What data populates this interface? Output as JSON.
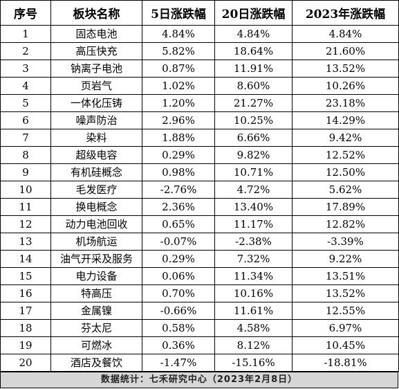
{
  "table": {
    "headers": [
      "序号",
      "板块名称",
      "5日涨跌幅",
      "20日涨跌幅",
      "2023年涨跌幅"
    ],
    "rows": [
      [
        "1",
        "固态电池",
        "4.84%",
        "4.84%",
        "4.84%"
      ],
      [
        "2",
        "高压快充",
        "5.82%",
        "18.64%",
        "21.60%"
      ],
      [
        "3",
        "钠离子电池",
        "0.87%",
        "11.91%",
        "13.52%"
      ],
      [
        "4",
        "页岩气",
        "1.02%",
        "8.60%",
        "10.26%"
      ],
      [
        "5",
        "一体化压铸",
        "1.20%",
        "21.27%",
        "23.18%"
      ],
      [
        "6",
        "噪声防治",
        "2.96%",
        "10.25%",
        "14.29%"
      ],
      [
        "7",
        "染料",
        "1.88%",
        "6.66%",
        "9.42%"
      ],
      [
        "8",
        "超级电容",
        "0.29%",
        "9.82%",
        "12.52%"
      ],
      [
        "9",
        "有机硅概念",
        "0.98%",
        "10.71%",
        "12.50%"
      ],
      [
        "10",
        "毛发医疗",
        "-2.76%",
        "4.72%",
        "5.62%"
      ],
      [
        "11",
        "换电概念",
        "2.36%",
        "13.40%",
        "17.89%"
      ],
      [
        "12",
        "动力电池回收",
        "0.65%",
        "11.17%",
        "12.82%"
      ],
      [
        "13",
        "机场航运",
        "-0.07%",
        "-2.38%",
        "-3.39%"
      ],
      [
        "14",
        "油气开采及服务",
        "0.29%",
        "7.32%",
        "9.22%"
      ],
      [
        "15",
        "电力设备",
        "0.06%",
        "11.34%",
        "13.51%"
      ],
      [
        "16",
        "特高压",
        "0.70%",
        "10.16%",
        "13.52%"
      ],
      [
        "17",
        "金属镍",
        "-0.66%",
        "11.61%",
        "12.55%"
      ],
      [
        "18",
        "芬太尼",
        "0.58%",
        "4.58%",
        "6.97%"
      ],
      [
        "19",
        "可燃冰",
        "0.36%",
        "8.12%",
        "10.45%"
      ],
      [
        "20",
        "酒店及餐饮",
        "-1.47%",
        "-15.16%",
        "-18.81%"
      ]
    ]
  },
  "footer": {
    "source": "数据统计：七禾研究中心（2023年2月8日）"
  }
}
